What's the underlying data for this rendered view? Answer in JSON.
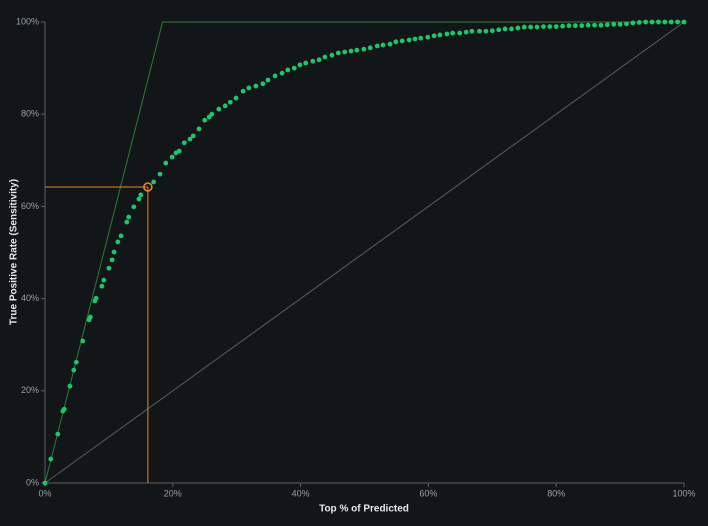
{
  "chart_data": {
    "type": "scatter",
    "xlabel": "Top % of Predicted",
    "ylabel": "True Positive Rate (Sensitivity)",
    "color": "#1fc46c",
    "x": [
      0,
      0.9,
      2,
      2.8,
      3,
      3.9,
      4.5,
      4.9,
      5.9,
      6.9,
      7.1,
      7.8,
      8,
      8.9,
      9.2,
      10,
      10.5,
      10.8,
      11.4,
      11.9,
      12.8,
      13.1,
      13.9,
      14.7,
      15,
      17,
      18,
      18.9,
      19.9,
      20.5,
      21,
      21.8,
      22.7,
      23.2,
      24.1,
      25,
      25.7,
      26.1,
      27.2,
      28.2,
      29,
      29.9,
      31,
      31.9,
      33,
      34.1,
      34.9,
      36,
      37.1,
      38,
      39,
      39.9,
      40.8,
      41.9,
      42.9,
      43.8,
      44.9,
      45.9,
      46.9,
      47.9,
      48.8,
      49.9,
      50.9,
      52,
      52.9,
      54,
      54.9,
      55.9,
      57,
      57.9,
      58.8,
      59.9,
      60.9,
      61.8,
      62.9,
      63.8,
      64.9,
      65.9,
      66.8,
      68,
      69,
      70,
      71,
      72,
      73,
      74,
      75,
      76,
      77,
      78,
      79,
      80,
      81,
      82,
      83,
      84,
      85,
      86,
      87,
      88,
      89,
      90,
      91,
      92,
      93,
      94,
      95,
      96,
      97,
      98,
      99,
      100
    ],
    "values": [
      0,
      5.2,
      10.6,
      15.6,
      16,
      21,
      24.5,
      26.2,
      30.8,
      35.4,
      36,
      39.5,
      40.1,
      42.7,
      44,
      46.6,
      48.4,
      50.1,
      52.3,
      53.6,
      56.6,
      57.7,
      59.9,
      61.6,
      62.5,
      65.3,
      67,
      69.4,
      70.7,
      71.6,
      72,
      73.8,
      74.6,
      75.3,
      76.8,
      78.7,
      79.4,
      80,
      81.1,
      81.8,
      82.6,
      83.5,
      85,
      85.7,
      86.1,
      86.6,
      87.4,
      88.3,
      88.9,
      89.6,
      90,
      90.7,
      91.1,
      91.5,
      91.8,
      92.4,
      92.8,
      93.3,
      93.5,
      93.7,
      93.9,
      94.1,
      94.4,
      94.8,
      95,
      95.2,
      95.7,
      95.9,
      96.1,
      96.3,
      96.5,
      96.7,
      97,
      97.2,
      97.4,
      97.6,
      97.6,
      97.8,
      98,
      98,
      98,
      98.1,
      98.3,
      98.5,
      98.5,
      98.7,
      98.9,
      98.9,
      98.9,
      99,
      99,
      99,
      99.1,
      99.2,
      99.2,
      99.2,
      99.3,
      99.3,
      99.3,
      99.4,
      99.5,
      99.5,
      99.6,
      99.8,
      99.9,
      100,
      100,
      100,
      100,
      100,
      100,
      100
    ],
    "ideal_line": {
      "color": "#2f7a3c",
      "x": [
        0,
        18.4,
        100
      ],
      "values": [
        0,
        100,
        100
      ]
    },
    "baseline": {
      "color": "#565c61",
      "x": [
        0,
        100
      ],
      "values": [
        0,
        100
      ]
    },
    "highlight": {
      "color": "#e8862a",
      "x": 16.1,
      "y": 64.2
    },
    "xlim": [
      0,
      100
    ],
    "ylim": [
      0,
      100
    ],
    "xticks": [
      {
        "value": 0,
        "label": "0%"
      },
      {
        "value": 20,
        "label": "20%"
      },
      {
        "value": 40,
        "label": "40%"
      },
      {
        "value": 60,
        "label": "60%"
      },
      {
        "value": 80,
        "label": "80%"
      },
      {
        "value": 100,
        "label": "100%"
      }
    ],
    "yticks": [
      {
        "value": 0,
        "label": "0%"
      },
      {
        "value": 20,
        "label": "20%"
      },
      {
        "value": 40,
        "label": "40%"
      },
      {
        "value": 60,
        "label": "60%"
      },
      {
        "value": 80,
        "label": "80%"
      },
      {
        "value": 100,
        "label": "100%"
      }
    ]
  }
}
